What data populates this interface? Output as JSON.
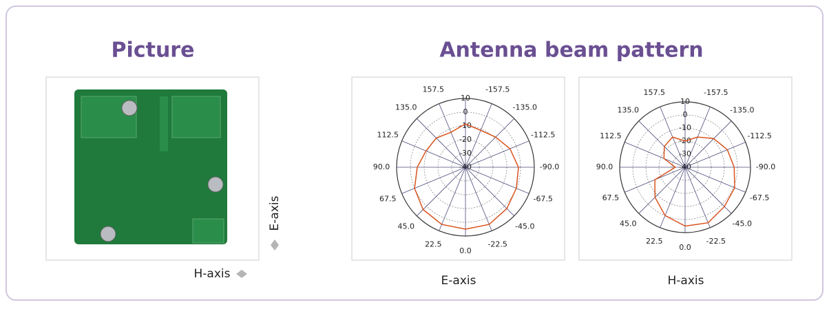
{
  "header": {
    "picture_title": "Picture",
    "pattern_title": "Antenna beam pattern"
  },
  "picture": {
    "e_axis_label": "E-axis",
    "h_axis_label": "H-axis"
  },
  "chart_data": [
    {
      "type": "polar",
      "title": "E-axis",
      "thetaticks": [
        {
          "value": 0,
          "label": "0.0"
        },
        22.5,
        {
          "value": 45,
          "label": "45.0"
        },
        67.5,
        {
          "value": 90,
          "label": "90.0"
        },
        112.5,
        {
          "value": 135,
          "label": "135.0"
        },
        157.5,
        -157.5,
        {
          "value": -135,
          "label": "-135.0"
        },
        -112.5,
        {
          "value": -90,
          "label": "-90.0"
        },
        -67.5,
        {
          "value": -45,
          "label": "-45.0"
        },
        -22.5
      ],
      "rlim": [
        -40,
        10
      ],
      "rticks": [
        -40,
        -30,
        -20,
        -10,
        0,
        10
      ],
      "series": [
        {
          "color": "#d9531e",
          "x": [
            -180,
            -157.5,
            -135,
            -112.5,
            -90,
            -67.5,
            -45,
            -22.5,
            0,
            22.5,
            45,
            67.5,
            90,
            112.5,
            135,
            157.5,
            180
          ],
          "values": [
            -8.5,
            -11,
            -9,
            -5,
            -1.5,
            0,
            2.5,
            5,
            5,
            5,
            3.5,
            0,
            -5,
            -9,
            -10,
            -12.5,
            -8.5
          ]
        }
      ]
    },
    {
      "type": "polar",
      "title": "H-axis",
      "thetaticks": [
        {
          "value": 0,
          "label": "0.0"
        },
        22.5,
        {
          "value": 45,
          "label": "45.0"
        },
        67.5,
        {
          "value": 90,
          "label": "90.0"
        },
        112.5,
        {
          "value": 135,
          "label": "135.0"
        },
        157.5,
        -157.5,
        {
          "value": -135,
          "label": "-135.0"
        },
        -112.5,
        {
          "value": -90,
          "label": "-90.0"
        },
        -67.5,
        {
          "value": -45,
          "label": "-45.0"
        },
        -22.5
      ],
      "rlim": [
        -40,
        10
      ],
      "rticks": [
        -40,
        -30,
        -20,
        -10,
        0,
        10
      ],
      "series": [
        {
          "color": "#d9531e",
          "x": [
            -180,
            -157.5,
            -135,
            -112.5,
            -90,
            -67.5,
            -45,
            -22.5,
            0,
            22.5,
            45,
            67.5,
            90,
            112.5,
            135,
            157.5,
            180
          ],
          "values": [
            -20,
            -15,
            -9,
            -5,
            -2.5,
            1,
            2.5,
            6,
            5,
            0,
            -7.5,
            -15,
            -32.5,
            -22.5,
            -17.5,
            -15,
            -20
          ]
        }
      ]
    }
  ]
}
